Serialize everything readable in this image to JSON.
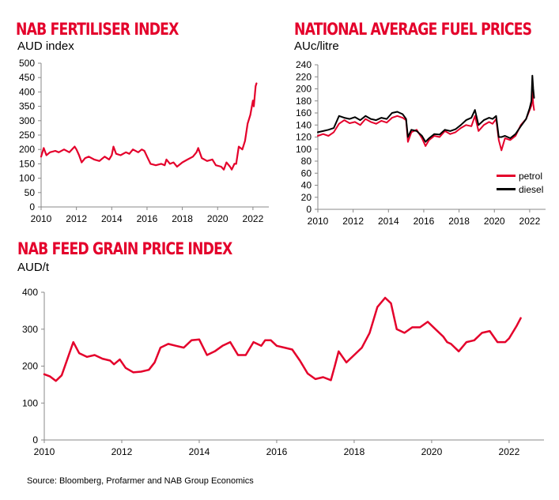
{
  "source": "Source: Bloomberg, Profarmer and NAB Group Economics",
  "chart_data": [
    {
      "id": "fertiliser",
      "type": "line",
      "title": "NAB FERTILISER INDEX",
      "ylabel": "AUD index",
      "xlim": [
        2010,
        2022.9
      ],
      "ylim": [
        0,
        500
      ],
      "yticks": [
        0,
        50,
        100,
        150,
        200,
        250,
        300,
        350,
        400,
        450,
        500
      ],
      "xticks": [
        2010,
        2012,
        2014,
        2016,
        2018,
        2020,
        2022
      ],
      "grid": false,
      "series": [
        {
          "color": "#e4002b",
          "x": [
            2010.0,
            2010.15,
            2010.3,
            2010.5,
            2010.8,
            2011.0,
            2011.3,
            2011.6,
            2011.9,
            2012.0,
            2012.15,
            2012.3,
            2012.5,
            2012.7,
            2013.0,
            2013.3,
            2013.6,
            2013.85,
            2014.0,
            2014.1,
            2014.25,
            2014.5,
            2014.8,
            2015.0,
            2015.2,
            2015.5,
            2015.7,
            2015.85,
            2016.0,
            2016.2,
            2016.5,
            2016.8,
            2017.0,
            2017.1,
            2017.3,
            2017.5,
            2017.7,
            2018.0,
            2018.3,
            2018.6,
            2018.8,
            2018.9,
            2019.1,
            2019.4,
            2019.7,
            2019.9,
            2020.2,
            2020.35,
            2020.5,
            2020.7,
            2020.8,
            2020.95,
            2021.05,
            2021.2,
            2021.4,
            2021.55,
            2021.7,
            2021.85,
            2022.0,
            2022.05,
            2022.15,
            2022.2
          ],
          "y": [
            175,
            205,
            180,
            190,
            195,
            190,
            200,
            190,
            210,
            200,
            180,
            155,
            170,
            175,
            165,
            160,
            175,
            165,
            180,
            210,
            185,
            180,
            190,
            185,
            200,
            190,
            200,
            195,
            175,
            150,
            145,
            150,
            145,
            165,
            150,
            155,
            140,
            155,
            165,
            175,
            190,
            205,
            170,
            160,
            165,
            145,
            140,
            130,
            155,
            140,
            130,
            150,
            150,
            210,
            200,
            230,
            290,
            320,
            370,
            350,
            420,
            430
          ]
        }
      ]
    },
    {
      "id": "fuel",
      "type": "line",
      "title": "NATIONAL AVERAGE FUEL PRICES",
      "ylabel": "AUc/litre",
      "xlim": [
        2010,
        2022.9
      ],
      "ylim": [
        0,
        240
      ],
      "yticks": [
        0,
        20,
        40,
        60,
        80,
        100,
        120,
        140,
        160,
        180,
        200,
        220,
        240
      ],
      "xticks": [
        2010,
        2012,
        2014,
        2016,
        2018,
        2020,
        2022
      ],
      "grid": false,
      "legend": "bottom-right",
      "series": [
        {
          "name": "petrol",
          "color": "#e4002b",
          "x": [
            2010.0,
            2010.3,
            2010.6,
            2010.9,
            2011.2,
            2011.5,
            2011.8,
            2012.1,
            2012.4,
            2012.7,
            2013.0,
            2013.3,
            2013.6,
            2013.9,
            2014.2,
            2014.5,
            2014.8,
            2015.0,
            2015.1,
            2015.3,
            2015.6,
            2015.9,
            2016.1,
            2016.3,
            2016.6,
            2016.9,
            2017.2,
            2017.5,
            2017.8,
            2018.1,
            2018.4,
            2018.7,
            2018.9,
            2019.1,
            2019.4,
            2019.7,
            2019.9,
            2020.1,
            2020.25,
            2020.4,
            2020.6,
            2020.9,
            2021.2,
            2021.5,
            2021.8,
            2022.0,
            2022.1,
            2022.15,
            2022.2,
            2022.25
          ],
          "y": [
            122,
            125,
            122,
            128,
            142,
            148,
            143,
            145,
            140,
            150,
            145,
            142,
            147,
            144,
            152,
            155,
            152,
            148,
            112,
            128,
            132,
            118,
            105,
            115,
            122,
            120,
            130,
            125,
            128,
            135,
            140,
            138,
            155,
            130,
            140,
            145,
            142,
            150,
            115,
            98,
            118,
            115,
            122,
            140,
            150,
            165,
            172,
            195,
            175,
            165
          ]
        },
        {
          "name": "diesel",
          "color": "#000000",
          "x": [
            2010.0,
            2010.3,
            2010.6,
            2010.9,
            2011.2,
            2011.5,
            2011.8,
            2012.1,
            2012.4,
            2012.7,
            2013.0,
            2013.3,
            2013.6,
            2013.9,
            2014.2,
            2014.5,
            2014.8,
            2015.0,
            2015.1,
            2015.3,
            2015.6,
            2015.9,
            2016.1,
            2016.3,
            2016.6,
            2016.9,
            2017.2,
            2017.5,
            2017.8,
            2018.1,
            2018.4,
            2018.7,
            2018.9,
            2019.1,
            2019.4,
            2019.7,
            2019.9,
            2020.1,
            2020.25,
            2020.4,
            2020.6,
            2020.9,
            2021.2,
            2021.5,
            2021.8,
            2022.0,
            2022.1,
            2022.15,
            2022.2,
            2022.25
          ],
          "y": [
            128,
            130,
            132,
            135,
            155,
            152,
            150,
            153,
            148,
            155,
            150,
            148,
            152,
            150,
            160,
            162,
            158,
            150,
            120,
            132,
            130,
            122,
            112,
            118,
            125,
            124,
            132,
            130,
            133,
            140,
            148,
            152,
            165,
            140,
            148,
            152,
            150,
            155,
            120,
            120,
            122,
            118,
            125,
            138,
            150,
            168,
            180,
            222,
            200,
            185
          ]
        }
      ]
    },
    {
      "id": "grain",
      "type": "line",
      "title": "NAB FEED GRAIN PRICE INDEX",
      "ylabel": "AUD/t",
      "xlim": [
        2010,
        2022.9
      ],
      "ylim": [
        0,
        400
      ],
      "yticks": [
        0,
        100,
        200,
        300,
        400
      ],
      "xticks": [
        2010,
        2012,
        2014,
        2016,
        2018,
        2020,
        2022
      ],
      "grid": false,
      "series": [
        {
          "color": "#e4002b",
          "x": [
            2010.0,
            2010.15,
            2010.3,
            2010.45,
            2010.6,
            2010.75,
            2010.9,
            2011.1,
            2011.3,
            2011.5,
            2011.7,
            2011.8,
            2011.95,
            2012.1,
            2012.3,
            2012.5,
            2012.7,
            2012.85,
            2013.0,
            2013.2,
            2013.4,
            2013.6,
            2013.8,
            2014.0,
            2014.2,
            2014.4,
            2014.6,
            2014.8,
            2015.0,
            2015.2,
            2015.4,
            2015.6,
            2015.7,
            2015.85,
            2016.0,
            2016.2,
            2016.4,
            2016.6,
            2016.8,
            2017.0,
            2017.2,
            2017.4,
            2017.5,
            2017.6,
            2017.8,
            2018.0,
            2018.2,
            2018.4,
            2018.6,
            2018.8,
            2018.95,
            2019.1,
            2019.3,
            2019.5,
            2019.7,
            2019.9,
            2020.1,
            2020.3,
            2020.4,
            2020.5,
            2020.7,
            2020.9,
            2021.1,
            2021.3,
            2021.5,
            2021.7,
            2021.9,
            2022.0,
            2022.2,
            2022.3
          ],
          "y": [
            178,
            172,
            160,
            175,
            220,
            265,
            235,
            225,
            230,
            220,
            215,
            205,
            218,
            195,
            183,
            185,
            190,
            210,
            250,
            260,
            255,
            250,
            270,
            272,
            230,
            240,
            255,
            265,
            230,
            230,
            265,
            255,
            270,
            270,
            255,
            250,
            245,
            215,
            180,
            165,
            170,
            162,
            200,
            240,
            210,
            230,
            250,
            290,
            360,
            385,
            370,
            300,
            290,
            305,
            305,
            320,
            300,
            280,
            265,
            260,
            240,
            265,
            270,
            290,
            295,
            265,
            265,
            275,
            310,
            330
          ]
        }
      ]
    }
  ]
}
